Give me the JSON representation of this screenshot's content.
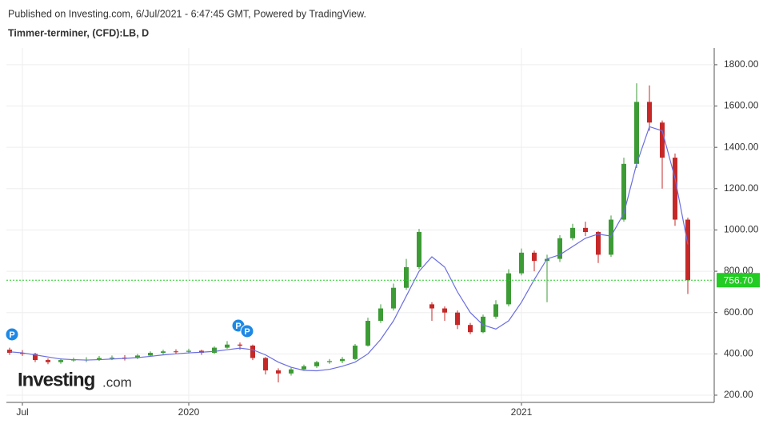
{
  "header": {
    "published": "Published on Investing.com, 6/Jul/2021 - 6:47:45 GMT, Powered by TradingView.",
    "symbol": "Timmer-terminer, (CFD):LB, D"
  },
  "logo": {
    "brand": "Investing",
    "suffix": ".com"
  },
  "chart_data": {
    "type": "candlestick",
    "categories": [
      null,
      "Jul",
      null,
      null,
      null,
      null,
      null,
      null,
      null,
      null,
      null,
      null,
      null,
      null,
      "2020",
      null,
      null,
      null,
      null,
      null,
      null,
      null,
      null,
      null,
      null,
      null,
      null,
      null,
      null,
      null,
      null,
      null,
      null,
      null,
      null,
      null,
      null,
      null,
      null,
      null,
      "2021",
      null,
      null,
      null,
      null,
      null,
      null,
      null,
      null,
      null,
      null,
      null,
      null,
      null
    ],
    "open": [
      420,
      405,
      400,
      370,
      360,
      370,
      372,
      372,
      380,
      382,
      380,
      392,
      405,
      412,
      410,
      415,
      405,
      430,
      445,
      440,
      380,
      320,
      305,
      325,
      340,
      360,
      365,
      375,
      440,
      560,
      620,
      720,
      820,
      640,
      620,
      600,
      540,
      505,
      580,
      640,
      790,
      890,
      850,
      860,
      960,
      1010,
      990,
      880,
      1050,
      1320,
      1620,
      1520,
      1350,
      1050
    ],
    "high": [
      430,
      418,
      405,
      378,
      378,
      382,
      384,
      390,
      392,
      394,
      400,
      412,
      420,
      422,
      425,
      420,
      436,
      462,
      455,
      445,
      385,
      330,
      335,
      348,
      366,
      375,
      385,
      448,
      575,
      640,
      740,
      860,
      1005,
      650,
      630,
      610,
      550,
      590,
      660,
      810,
      910,
      900,
      880,
      975,
      1030,
      1040,
      995,
      1070,
      1350,
      1710,
      1700,
      1530,
      1370,
      1060
    ],
    "low": [
      395,
      390,
      360,
      350,
      352,
      362,
      360,
      366,
      370,
      368,
      374,
      386,
      398,
      400,
      402,
      395,
      400,
      425,
      420,
      370,
      300,
      262,
      295,
      318,
      332,
      352,
      355,
      370,
      435,
      550,
      610,
      710,
      810,
      560,
      560,
      520,
      495,
      500,
      570,
      630,
      780,
      800,
      650,
      845,
      950,
      970,
      840,
      870,
      1040,
      1300,
      1480,
      1200,
      1020,
      690
    ],
    "close": [
      405,
      400,
      370,
      360,
      370,
      372,
      372,
      380,
      382,
      380,
      392,
      405,
      412,
      410,
      415,
      405,
      430,
      445,
      440,
      380,
      320,
      305,
      325,
      340,
      360,
      365,
      375,
      440,
      560,
      620,
      720,
      820,
      990,
      620,
      600,
      540,
      505,
      580,
      640,
      790,
      890,
      850,
      860,
      960,
      1010,
      990,
      880,
      1050,
      1320,
      1620,
      1520,
      1350,
      1050,
      756.7
    ],
    "up_color": "#3d9b35",
    "down_color": "#c62828",
    "moving_average": {
      "color": "#6a6ee0",
      "values": [
        410,
        405,
        395,
        385,
        375,
        372,
        370,
        372,
        375,
        378,
        382,
        388,
        395,
        400,
        405,
        408,
        412,
        420,
        428,
        420,
        395,
        360,
        335,
        320,
        318,
        325,
        340,
        360,
        400,
        470,
        560,
        680,
        800,
        870,
        820,
        700,
        600,
        540,
        520,
        560,
        650,
        760,
        860,
        880,
        920,
        960,
        980,
        970,
        1080,
        1320,
        1500,
        1480,
        1250,
        930
      ]
    },
    "last_price": {
      "value": 756.7,
      "label": "756.70",
      "color": "#22cc22"
    },
    "markers": [
      "P",
      "P",
      "P"
    ],
    "ylim": [
      165,
      1881
    ],
    "yticks": [
      {
        "value": 200,
        "label": "200.00"
      },
      {
        "value": 400,
        "label": "400.00"
      },
      {
        "value": 600,
        "label": "600.00"
      },
      {
        "value": 800,
        "label": "800.00"
      },
      {
        "value": 1000,
        "label": "1000.00"
      },
      {
        "value": 1200,
        "label": "1200.00"
      },
      {
        "value": 1400,
        "label": "1400.00"
      },
      {
        "value": 1600,
        "label": "1600.00"
      },
      {
        "value": 1800,
        "label": "1800.00"
      }
    ],
    "grid": true
  }
}
